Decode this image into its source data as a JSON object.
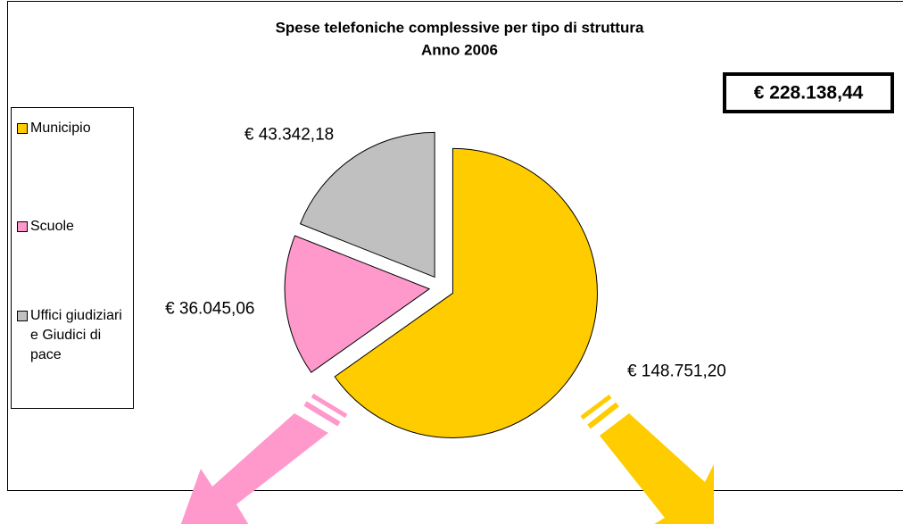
{
  "chart_data": {
    "type": "pie",
    "title": "Spese telefoniche complessive per tipo di struttura",
    "subtitle": "Anno 2006",
    "total_label": "€ 228.138,44",
    "categories": [
      "Municipio",
      "Scuole",
      "Uffici giudiziari e Giudici di pace"
    ],
    "values": [
      148751.2,
      36045.06,
      43342.18
    ],
    "value_labels": [
      "€ 148.751,20",
      "€ 36.045,06",
      "€ 43.342,18"
    ],
    "colors": [
      "#ffcc00",
      "#ff99cc",
      "#c0c0c0"
    ],
    "legend": "left"
  }
}
